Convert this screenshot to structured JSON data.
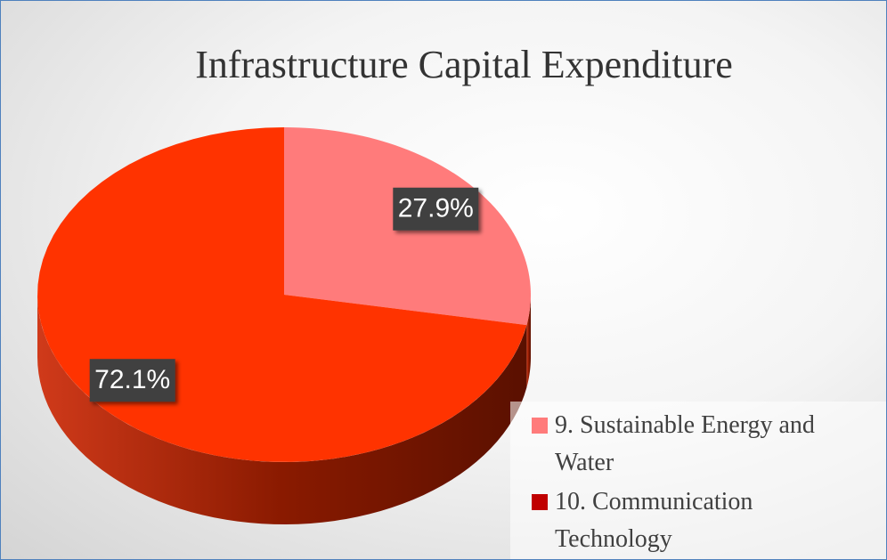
{
  "chart_data": {
    "type": "pie",
    "title": "Infrastructure Capital Expenditure",
    "categories": [
      "9. Sustainable Energy and Water",
      "10. Communication Technology"
    ],
    "values": [
      27.9,
      72.1
    ],
    "value_labels": [
      "27.9%",
      "72.1%"
    ],
    "colors": [
      "#ff7b7b",
      "#ff3300"
    ],
    "legend_colors": [
      "#ff7b7b",
      "#c00000"
    ]
  }
}
